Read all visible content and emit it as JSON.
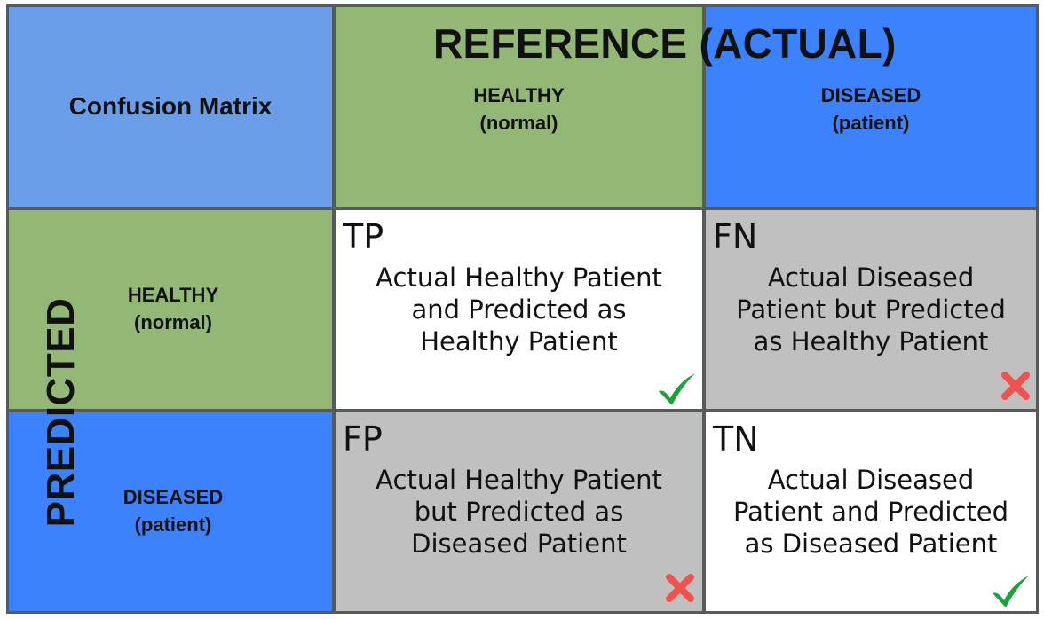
{
  "title": "Confusion Matrix",
  "reference_title": "REFERENCE (ACTUAL)",
  "predicted_title": "PREDICTED",
  "columns": [
    {
      "name": "HEALTHY",
      "sub": "(normal)",
      "color": "#93b875"
    },
    {
      "name": "DISEASED",
      "sub": "(patient)",
      "color": "#3d82fd"
    }
  ],
  "rows": [
    {
      "name": "HEALTHY",
      "sub": "(normal)",
      "color": "#93b875"
    },
    {
      "name": "DISEASED",
      "sub": "(patient)",
      "color": "#3d82fd"
    }
  ],
  "cells": {
    "tp": {
      "abbr": "TP",
      "lines": [
        "Actual Healthy Patient",
        "and Predicted as",
        "Healthy Patient"
      ],
      "mark": "check-icon",
      "bg": "#ffffff"
    },
    "fn": {
      "abbr": "FN",
      "lines": [
        "Actual Diseased",
        "Patient but Predicted",
        "as Healthy Patient"
      ],
      "mark": "cross-icon",
      "bg": "#c0c0c0"
    },
    "fp": {
      "abbr": "FP",
      "lines": [
        "Actual Healthy Patient",
        "but Predicted as",
        "Diseased Patient"
      ],
      "mark": "cross-icon",
      "bg": "#c0c0c0"
    },
    "tn": {
      "abbr": "TN",
      "lines": [
        "Actual Diseased",
        "Patient and Predicted",
        "as Diseased Patient"
      ],
      "mark": "check-icon",
      "bg": "#ffffff"
    }
  },
  "colors": {
    "corner": "#6b9ee8",
    "check": "#1aa33a",
    "cross": "#ef5350",
    "grid_line": "#555a5c"
  }
}
